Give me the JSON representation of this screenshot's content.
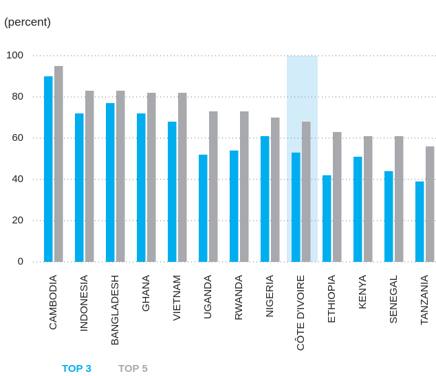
{
  "chart_data": {
    "type": "bar",
    "y_label": "(percent)",
    "categories": [
      "CAMBODIA",
      "INDONESIA",
      "BANGLADESH",
      "GHANA",
      "VIETNAM",
      "UGANDA",
      "RWANDA",
      "NIGERIA",
      "CÔTE D'IVOIRE",
      "ETHIOPIA",
      "KENYA",
      "SENEGAL",
      "TANZANIA"
    ],
    "series": [
      {
        "name": "TOP 3",
        "color": "#00aeef",
        "values": [
          90,
          72,
          77,
          72,
          68,
          52,
          54,
          61,
          53,
          42,
          51,
          44,
          39
        ]
      },
      {
        "name": "TOP 5",
        "color": "#a7a9ac",
        "values": [
          95,
          83,
          83,
          82,
          82,
          73,
          73,
          70,
          68,
          63,
          61,
          61,
          56
        ]
      }
    ],
    "ylim": [
      0,
      100
    ],
    "yticks": [
      0,
      20,
      40,
      60,
      80,
      100
    ],
    "grid": true,
    "highlight": 8,
    "highlight_color": "#d3ecfa"
  }
}
